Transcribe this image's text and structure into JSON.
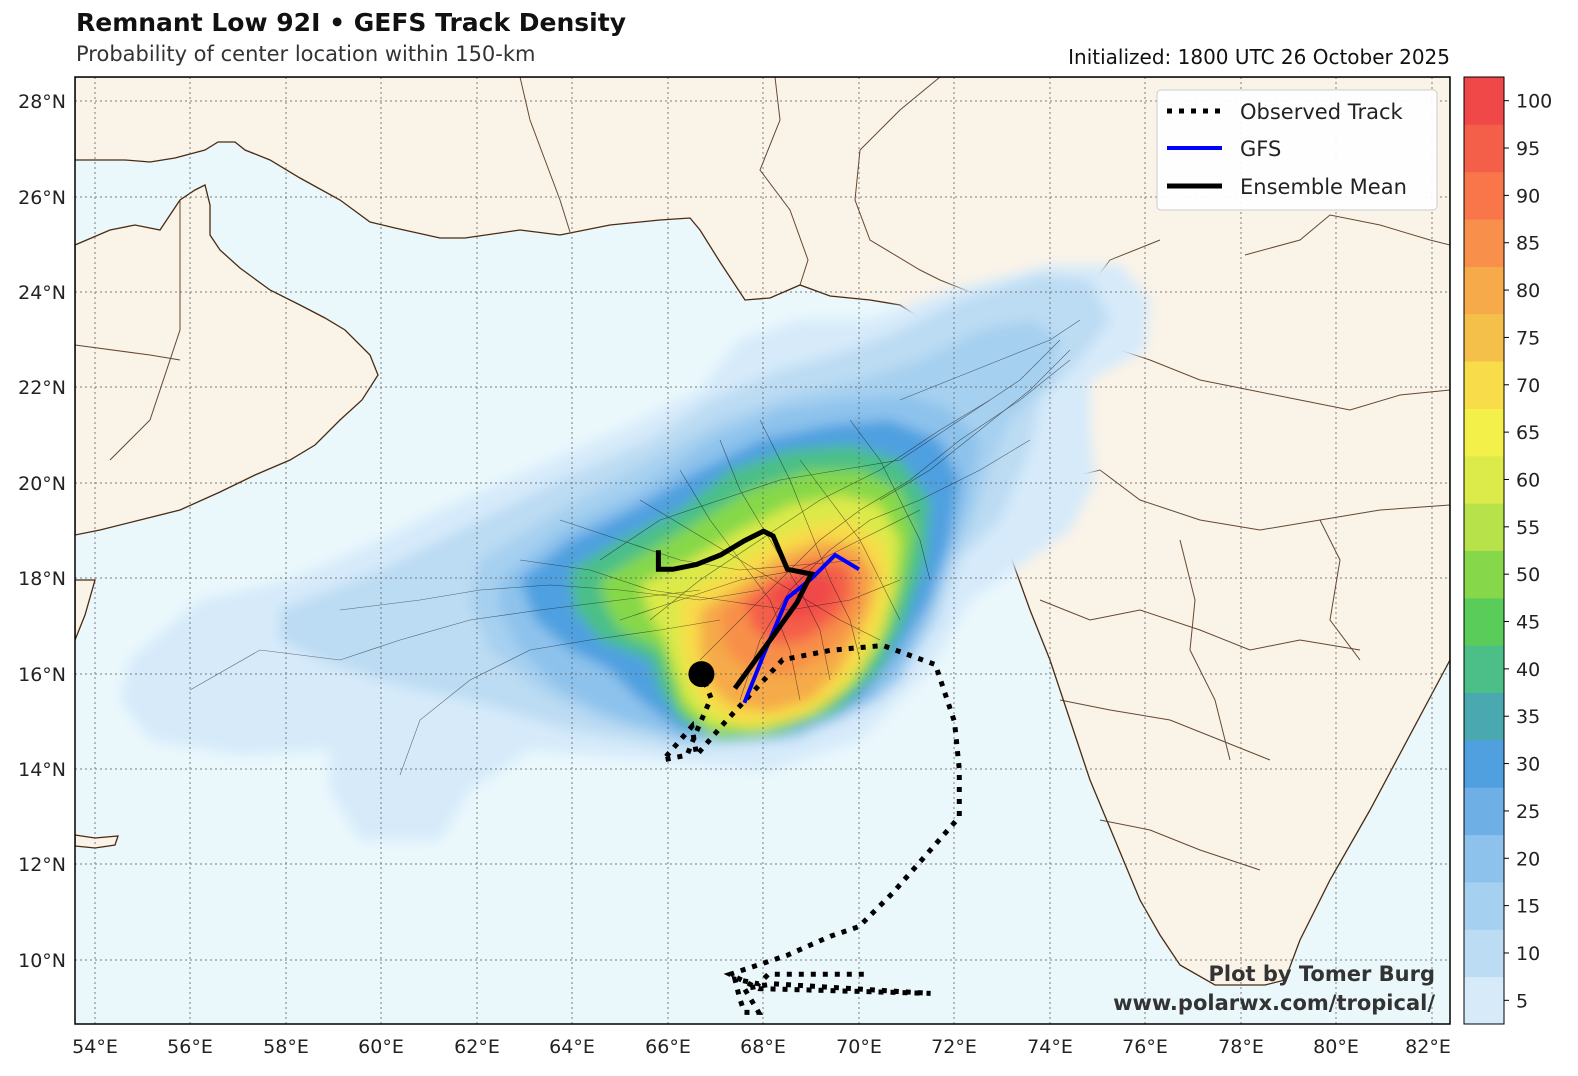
{
  "header": {
    "title": "Remnant Low 92I • GEFS Track Density",
    "subtitle": "Probability of center location within 150-km",
    "initialized": "Initialized: 1800 UTC 26 October 2025"
  },
  "map": {
    "lon_range": [
      53.6,
      82.4
    ],
    "lat_range": [
      8.6,
      28.5
    ],
    "land_color": "#faf3e8",
    "ocean_color": "#eaf8fc",
    "coast_color": "#4a2b12",
    "lon_ticks": [
      "54°E",
      "56°E",
      "58°E",
      "60°E",
      "62°E",
      "64°E",
      "66°E",
      "68°E",
      "70°E",
      "72°E",
      "74°E",
      "76°E",
      "78°E",
      "80°E",
      "82°E"
    ],
    "lat_ticks": [
      "10°N",
      "12°N",
      "14°N",
      "16°N",
      "18°N",
      "20°N",
      "22°N",
      "24°N",
      "26°N",
      "28°N"
    ]
  },
  "legend": {
    "observed": "Observed Track",
    "gfs": "GFS",
    "mean": "Ensemble Mean",
    "observed_color": "#000000",
    "gfs_color": "#0000ff",
    "mean_color": "#000000"
  },
  "colorbar": {
    "ticks": [
      "5",
      "10",
      "15",
      "20",
      "25",
      "30",
      "35",
      "40",
      "45",
      "50",
      "55",
      "60",
      "65",
      "70",
      "75",
      "80",
      "85",
      "90",
      "95",
      "100"
    ],
    "colors": [
      "#d6eafa",
      "#bcdcf3",
      "#a6d0f0",
      "#8dc2ec",
      "#6eb0e6",
      "#50a0e0",
      "#4aa8b0",
      "#4cbf88",
      "#5acc5a",
      "#86d84a",
      "#b8e24a",
      "#dcea4a",
      "#f4f04a",
      "#f8dc4a",
      "#f4c04a",
      "#f6aa4a",
      "#f88f4a",
      "#f8764a",
      "#f45f4a",
      "#f04848"
    ]
  },
  "credit": {
    "line1": "Plot by Tomer Burg",
    "line2": "www.polarwx.com/tropical/"
  },
  "tracks": {
    "observed": [
      [
        70.1,
        9.7
      ],
      [
        68.1,
        9.7
      ],
      [
        67.9,
        9.5
      ],
      [
        67.4,
        9.6
      ],
      [
        67.5,
        9.2
      ],
      [
        67.6,
        8.9
      ],
      [
        67.9,
        8.9
      ],
      [
        67.6,
        9.4
      ],
      [
        68.2,
        9.5
      ],
      [
        71.5,
        9.3
      ],
      [
        67.9,
        9.4
      ],
      [
        67.3,
        9.7
      ],
      [
        68.5,
        10.1
      ],
      [
        69.4,
        10.5
      ],
      [
        70.0,
        10.7
      ],
      [
        70.7,
        11.4
      ],
      [
        71.4,
        12.2
      ],
      [
        72.1,
        13.0
      ],
      [
        72.1,
        14.0
      ],
      [
        72.0,
        15.0
      ],
      [
        71.6,
        16.2
      ],
      [
        70.5,
        16.6
      ],
      [
        69.4,
        16.5
      ],
      [
        68.4,
        16.3
      ],
      [
        67.2,
        15.0
      ],
      [
        66.6,
        14.3
      ],
      [
        66.5,
        14.9
      ],
      [
        65.9,
        14.2
      ],
      [
        66.4,
        14.3
      ],
      [
        66.6,
        14.8
      ],
      [
        66.9,
        15.5
      ],
      [
        66.7,
        16.0
      ]
    ],
    "gfs": [
      [
        67.6,
        15.4
      ],
      [
        68.0,
        16.4
      ],
      [
        68.5,
        17.6
      ],
      [
        69.0,
        18.0
      ],
      [
        69.5,
        18.5
      ],
      [
        70.0,
        18.2
      ]
    ],
    "mean": [
      [
        67.4,
        15.7
      ],
      [
        68.2,
        16.8
      ],
      [
        68.7,
        17.5
      ],
      [
        69.0,
        18.1
      ],
      [
        68.5,
        18.2
      ],
      [
        68.2,
        18.9
      ],
      [
        68.0,
        19.0
      ],
      [
        67.6,
        18.8
      ],
      [
        67.1,
        18.5
      ],
      [
        66.6,
        18.3
      ],
      [
        66.1,
        18.2
      ],
      [
        65.8,
        18.2
      ],
      [
        65.8,
        18.6
      ]
    ],
    "genesis_point": [
      66.7,
      16.0
    ]
  }
}
